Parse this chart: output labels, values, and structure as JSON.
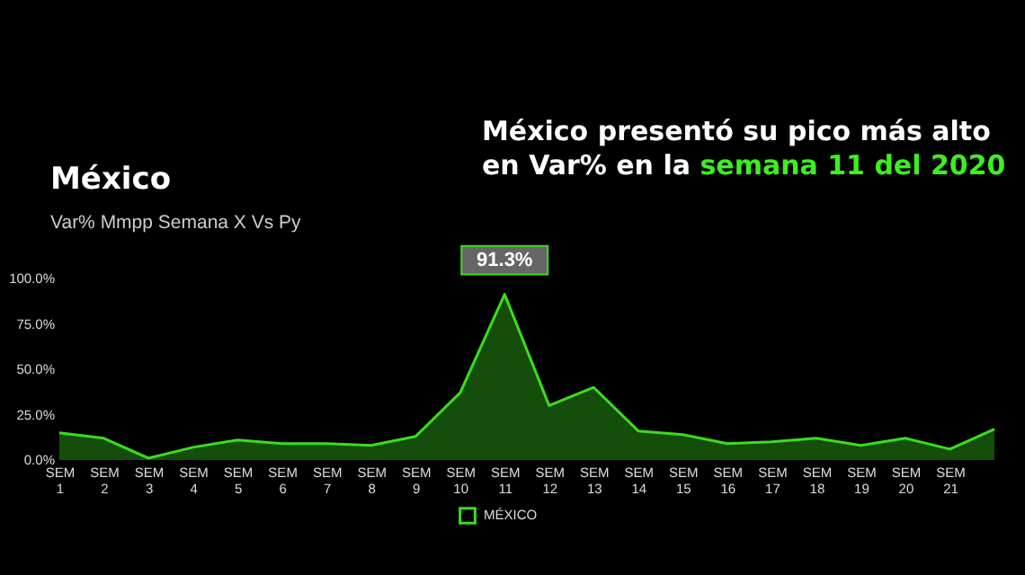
{
  "chart_data": {
    "type": "area",
    "title": "México",
    "subtitle": "Var% Mmpp Semana X Vs Py",
    "annotations": [
      "México presentó su pico más alto",
      "en Var% en la",
      "semana 11 del 2020"
    ],
    "categories": [
      "SEM 1",
      "SEM 2",
      "SEM 3",
      "SEM 4",
      "SEM 5",
      "SEM 6",
      "SEM 7",
      "SEM 8",
      "SEM 9",
      "SEM 10",
      "SEM 11",
      "SEM 12",
      "SEM 13",
      "SEM 14",
      "SEM 15",
      "SEM 16",
      "SEM 17",
      "SEM 18",
      "SEM 19",
      "SEM 20",
      "SEM 21",
      null
    ],
    "series": [
      {
        "name": "MÉXICO",
        "color": "#3cdc1e",
        "values": [
          15,
          12,
          1,
          7,
          11,
          9,
          9,
          8,
          13,
          37,
          91.3,
          30,
          40,
          16,
          14,
          9,
          10,
          12,
          8,
          12,
          6,
          17
        ],
        "value_labels": [
          null,
          null,
          null,
          null,
          null,
          null,
          null,
          null,
          null,
          null,
          "91.3%",
          null,
          null,
          null,
          null,
          null,
          null,
          null,
          null,
          null,
          null,
          null
        ]
      }
    ],
    "ylim": [
      0,
      100
    ],
    "yticks": [
      {
        "value": 0,
        "label": "0.0%"
      },
      {
        "value": 25,
        "label": "25.0%"
      },
      {
        "value": 50,
        "label": "50.0%"
      },
      {
        "value": 75,
        "label": "75.0%"
      },
      {
        "value": 100,
        "label": "100.0%"
      }
    ],
    "grid": false,
    "legend": "bottom",
    "marker": "none"
  }
}
